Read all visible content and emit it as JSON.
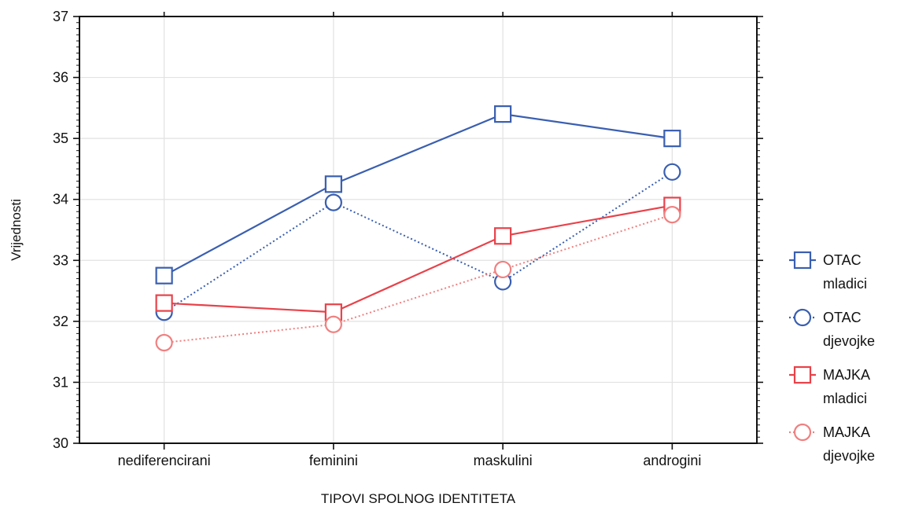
{
  "chart_data": {
    "type": "line",
    "title": "",
    "xlabel": "TIPOVI SPOLNOG IDENTITETA",
    "ylabel": "Vrijednosti",
    "categories": [
      "nediferencirani",
      "feminini",
      "maskulini",
      "androgini"
    ],
    "ylim": [
      30,
      37
    ],
    "yticks": [
      "30",
      "31",
      "32",
      "33",
      "34",
      "35",
      "36",
      "37"
    ],
    "grid": true,
    "legend_position": "right",
    "series": [
      {
        "name": "OTAC mladici",
        "legend_lines": [
          "OTAC",
          "mladici"
        ],
        "values": [
          32.75,
          34.25,
          35.4,
          35.0
        ],
        "color": "#3a5fb0",
        "marker": "square",
        "line_style": "solid"
      },
      {
        "name": "OTAC djevojke",
        "legend_lines": [
          "OTAC",
          "djevojke"
        ],
        "values": [
          32.15,
          33.95,
          32.65,
          34.45
        ],
        "color": "#3a5fb0",
        "marker": "circle",
        "line_style": "dotted"
      },
      {
        "name": "MAJKA mladici",
        "legend_lines": [
          "MAJKA",
          "mladici"
        ],
        "values": [
          32.3,
          32.15,
          33.4,
          33.9
        ],
        "color": "#e8424a",
        "marker": "square",
        "line_style": "solid"
      },
      {
        "name": "MAJKA djevojke",
        "legend_lines": [
          "MAJKA",
          "djevojke"
        ],
        "values": [
          31.65,
          31.95,
          32.85,
          33.75
        ],
        "color": "#f08080",
        "marker": "circle",
        "line_style": "dotted"
      }
    ]
  }
}
